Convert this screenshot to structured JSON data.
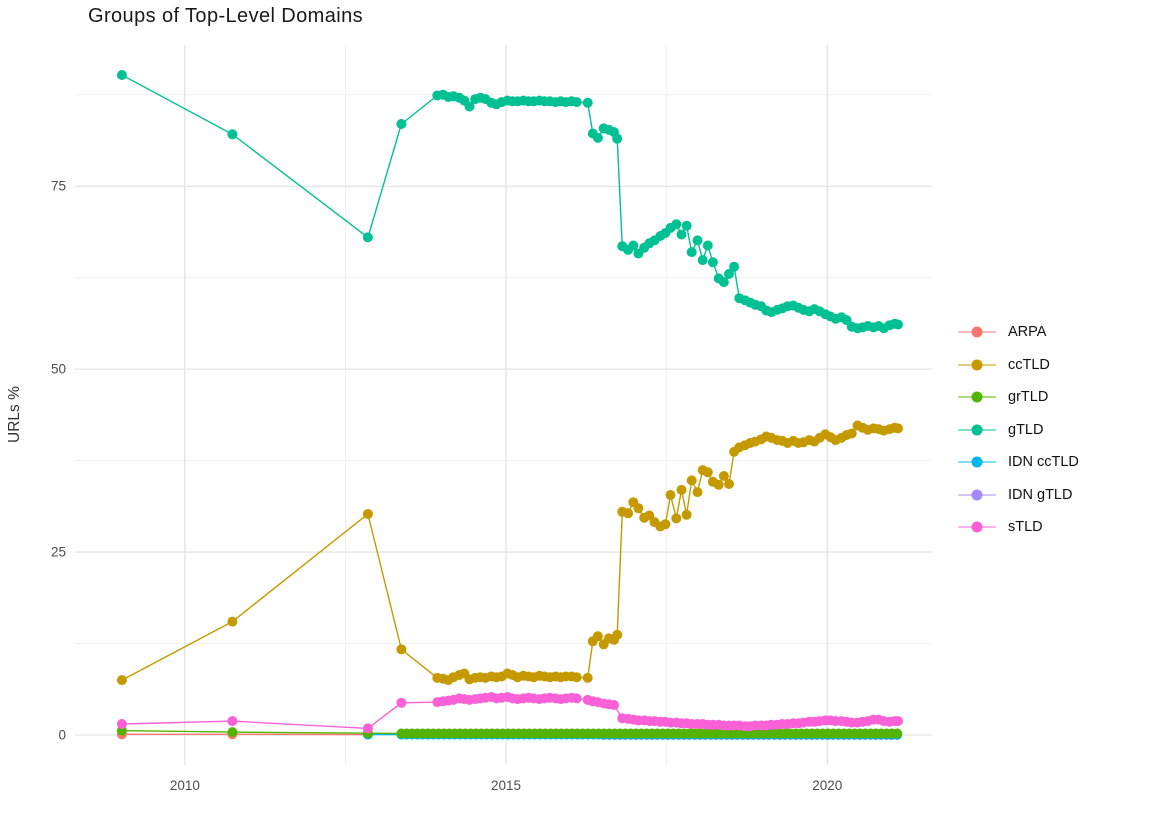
{
  "chart_data": {
    "type": "scatter",
    "title": "Groups of Top-Level Domains",
    "ylabel": "URLs %",
    "xlabel": "",
    "legend_position": "right",
    "grid": true,
    "x_domain": [
      2008.29,
      2021.63
    ],
    "y_domain": [
      -4.1,
      94.3
    ],
    "x_ticks": [
      2010,
      2015,
      2020
    ],
    "x_minor_gridlines": [
      2012.5,
      2017.5
    ],
    "y_ticks": [
      0,
      25,
      50,
      75
    ],
    "y_minor_gridlines": [
      12.5,
      37.5,
      62.5,
      87.5
    ],
    "colors": {
      "major_grid": "#e3e3e3",
      "minor_grid": "#efefef",
      "axis_text": "#4d4d4d",
      "title_text": "#1a1a1a",
      "background": "#ffffff"
    },
    "series": [
      {
        "name": "ARPA",
        "color": "#F8766D",
        "points": [
          [
            2009.02,
            0.1
          ],
          [
            2010.74,
            0.1
          ],
          [
            2012.85,
            0.05
          ]
        ]
      },
      {
        "name": "ccTLD",
        "color": "#C49A00",
        "points": [
          [
            2009.02,
            7.5
          ],
          [
            2010.74,
            15.5
          ],
          [
            2012.85,
            30.2
          ],
          [
            2013.37,
            11.7
          ],
          [
            2013.93,
            7.8
          ],
          [
            2014.02,
            7.7
          ],
          [
            2014.1,
            7.5
          ],
          [
            2014.18,
            7.9
          ],
          [
            2014.27,
            8.2
          ],
          [
            2014.35,
            8.4
          ],
          [
            2014.43,
            7.6
          ],
          [
            2014.52,
            7.8
          ],
          [
            2014.6,
            7.9
          ],
          [
            2014.68,
            7.8
          ],
          [
            2014.77,
            8.0
          ],
          [
            2014.85,
            7.9
          ],
          [
            2014.93,
            8.0
          ],
          [
            2015.02,
            8.4
          ],
          [
            2015.1,
            8.2
          ],
          [
            2015.18,
            7.9
          ],
          [
            2015.27,
            8.1
          ],
          [
            2015.35,
            8.0
          ],
          [
            2015.43,
            7.9
          ],
          [
            2015.52,
            8.1
          ],
          [
            2015.6,
            8.0
          ],
          [
            2015.68,
            7.9
          ],
          [
            2015.77,
            8.0
          ],
          [
            2015.85,
            7.9
          ],
          [
            2015.93,
            8.0
          ],
          [
            2016.02,
            8.0
          ],
          [
            2016.1,
            7.9
          ],
          [
            2016.27,
            7.8
          ],
          [
            2016.35,
            12.8
          ],
          [
            2016.43,
            13.5
          ],
          [
            2016.52,
            12.4
          ],
          [
            2016.6,
            13.2
          ],
          [
            2016.68,
            13.0
          ],
          [
            2016.73,
            13.7
          ],
          [
            2016.81,
            30.5
          ],
          [
            2016.9,
            30.3
          ],
          [
            2016.98,
            31.8
          ],
          [
            2017.06,
            31.0
          ],
          [
            2017.15,
            29.7
          ],
          [
            2017.23,
            30.0
          ],
          [
            2017.31,
            29.1
          ],
          [
            2017.4,
            28.5
          ],
          [
            2017.48,
            28.8
          ],
          [
            2017.56,
            32.8
          ],
          [
            2017.65,
            29.6
          ],
          [
            2017.73,
            33.5
          ],
          [
            2017.81,
            30.1
          ],
          [
            2017.89,
            34.8
          ],
          [
            2017.98,
            33.2
          ],
          [
            2018.06,
            36.2
          ],
          [
            2018.14,
            35.9
          ],
          [
            2018.22,
            34.6
          ],
          [
            2018.31,
            34.2
          ],
          [
            2018.39,
            35.4
          ],
          [
            2018.47,
            34.3
          ],
          [
            2018.55,
            38.7
          ],
          [
            2018.63,
            39.3
          ],
          [
            2018.72,
            39.6
          ],
          [
            2018.8,
            39.9
          ],
          [
            2018.88,
            40.1
          ],
          [
            2018.97,
            40.4
          ],
          [
            2019.05,
            40.8
          ],
          [
            2019.13,
            40.6
          ],
          [
            2019.22,
            40.3
          ],
          [
            2019.3,
            40.2
          ],
          [
            2019.38,
            39.9
          ],
          [
            2019.47,
            40.2
          ],
          [
            2019.55,
            39.9
          ],
          [
            2019.63,
            40.0
          ],
          [
            2019.72,
            40.3
          ],
          [
            2019.8,
            40.1
          ],
          [
            2019.88,
            40.6
          ],
          [
            2019.97,
            41.1
          ],
          [
            2020.05,
            40.7
          ],
          [
            2020.13,
            40.3
          ],
          [
            2020.22,
            40.6
          ],
          [
            2020.3,
            41.0
          ],
          [
            2020.38,
            41.2
          ],
          [
            2020.47,
            42.3
          ],
          [
            2020.55,
            42.0
          ],
          [
            2020.63,
            41.7
          ],
          [
            2020.72,
            41.9
          ],
          [
            2020.8,
            41.8
          ],
          [
            2020.88,
            41.6
          ],
          [
            2020.97,
            41.8
          ],
          [
            2021.05,
            42.0
          ],
          [
            2021.1,
            41.9
          ]
        ]
      },
      {
        "name": "grTLD",
        "color": "#53B400",
        "points": [
          [
            2009.02,
            0.6
          ],
          [
            2010.74,
            0.4
          ],
          [
            2012.85,
            0.25
          ]
        ],
        "fill": [
          {
            "from": 2013.37,
            "to": 2021.1,
            "step": 0.083,
            "value": 0.2
          }
        ]
      },
      {
        "name": "gTLD",
        "color": "#00C094",
        "points": [
          [
            2009.02,
            90.2
          ],
          [
            2010.74,
            82.1
          ],
          [
            2012.85,
            68.0
          ],
          [
            2013.37,
            83.5
          ],
          [
            2013.93,
            87.4
          ],
          [
            2014.02,
            87.5
          ],
          [
            2014.1,
            87.2
          ],
          [
            2014.18,
            87.3
          ],
          [
            2014.27,
            87.1
          ],
          [
            2014.35,
            86.7
          ],
          [
            2014.43,
            85.9
          ],
          [
            2014.52,
            86.9
          ],
          [
            2014.6,
            87.1
          ],
          [
            2014.68,
            86.9
          ],
          [
            2014.77,
            86.4
          ],
          [
            2014.85,
            86.2
          ],
          [
            2014.93,
            86.5
          ],
          [
            2015.02,
            86.7
          ],
          [
            2015.1,
            86.6
          ],
          [
            2015.18,
            86.6
          ],
          [
            2015.27,
            86.7
          ],
          [
            2015.35,
            86.6
          ],
          [
            2015.43,
            86.6
          ],
          [
            2015.52,
            86.7
          ],
          [
            2015.6,
            86.6
          ],
          [
            2015.68,
            86.6
          ],
          [
            2015.77,
            86.5
          ],
          [
            2015.85,
            86.6
          ],
          [
            2015.93,
            86.5
          ],
          [
            2016.02,
            86.6
          ],
          [
            2016.1,
            86.5
          ],
          [
            2016.27,
            86.4
          ],
          [
            2016.35,
            82.2
          ],
          [
            2016.43,
            81.6
          ],
          [
            2016.52,
            82.9
          ],
          [
            2016.6,
            82.7
          ],
          [
            2016.68,
            82.4
          ],
          [
            2016.73,
            81.5
          ],
          [
            2016.81,
            66.8
          ],
          [
            2016.9,
            66.3
          ],
          [
            2016.98,
            66.9
          ],
          [
            2017.06,
            65.8
          ],
          [
            2017.15,
            66.6
          ],
          [
            2017.23,
            67.2
          ],
          [
            2017.31,
            67.6
          ],
          [
            2017.4,
            68.2
          ],
          [
            2017.48,
            68.6
          ],
          [
            2017.56,
            69.3
          ],
          [
            2017.65,
            69.8
          ],
          [
            2017.73,
            68.4
          ],
          [
            2017.81,
            69.6
          ],
          [
            2017.89,
            66.0
          ],
          [
            2017.98,
            67.6
          ],
          [
            2018.06,
            64.9
          ],
          [
            2018.14,
            66.9
          ],
          [
            2018.22,
            64.6
          ],
          [
            2018.31,
            62.4
          ],
          [
            2018.39,
            61.9
          ],
          [
            2018.47,
            63.0
          ],
          [
            2018.55,
            64.0
          ],
          [
            2018.63,
            59.7
          ],
          [
            2018.72,
            59.4
          ],
          [
            2018.8,
            59.1
          ],
          [
            2018.88,
            58.8
          ],
          [
            2018.97,
            58.6
          ],
          [
            2019.05,
            58.0
          ],
          [
            2019.13,
            57.8
          ],
          [
            2019.22,
            58.1
          ],
          [
            2019.3,
            58.3
          ],
          [
            2019.38,
            58.6
          ],
          [
            2019.47,
            58.7
          ],
          [
            2019.55,
            58.4
          ],
          [
            2019.63,
            58.1
          ],
          [
            2019.72,
            57.9
          ],
          [
            2019.8,
            58.2
          ],
          [
            2019.88,
            57.9
          ],
          [
            2019.97,
            57.5
          ],
          [
            2020.05,
            57.2
          ],
          [
            2020.13,
            56.9
          ],
          [
            2020.22,
            57.1
          ],
          [
            2020.3,
            56.7
          ],
          [
            2020.38,
            55.8
          ],
          [
            2020.47,
            55.6
          ],
          [
            2020.55,
            55.7
          ],
          [
            2020.63,
            55.9
          ],
          [
            2020.72,
            55.7
          ],
          [
            2020.8,
            55.9
          ],
          [
            2020.88,
            55.6
          ],
          [
            2020.97,
            56.0
          ],
          [
            2021.05,
            56.2
          ],
          [
            2021.1,
            56.1
          ]
        ]
      },
      {
        "name": "IDN ccTLD",
        "color": "#00B6EB",
        "points": [
          [
            2012.85,
            0.05
          ]
        ],
        "fill": [
          {
            "from": 2013.37,
            "to": 2021.1,
            "step": 0.083,
            "value": 0.05
          }
        ]
      },
      {
        "name": "IDN gTLD",
        "color": "#A58AFF",
        "points": [],
        "fill": [
          {
            "from": 2016.52,
            "to": 2021.1,
            "step": 0.083,
            "value": 0.0
          }
        ]
      },
      {
        "name": "sTLD",
        "color": "#FB61D7",
        "points": [
          [
            2009.02,
            1.5
          ],
          [
            2010.74,
            1.9
          ],
          [
            2012.85,
            0.9
          ],
          [
            2013.37,
            4.4
          ],
          [
            2013.93,
            4.5
          ],
          [
            2014.02,
            4.6
          ],
          [
            2014.1,
            4.7
          ],
          [
            2014.18,
            4.8
          ],
          [
            2014.27,
            5.0
          ],
          [
            2014.35,
            4.9
          ],
          [
            2014.43,
            4.8
          ],
          [
            2014.52,
            4.9
          ],
          [
            2014.6,
            5.0
          ],
          [
            2014.68,
            5.1
          ],
          [
            2014.77,
            5.2
          ],
          [
            2014.85,
            5.0
          ],
          [
            2014.93,
            5.1
          ],
          [
            2015.02,
            5.2
          ],
          [
            2015.1,
            5.0
          ],
          [
            2015.18,
            4.9
          ],
          [
            2015.27,
            5.0
          ],
          [
            2015.35,
            5.1
          ],
          [
            2015.43,
            5.0
          ],
          [
            2015.52,
            4.9
          ],
          [
            2015.6,
            5.0
          ],
          [
            2015.68,
            5.1
          ],
          [
            2015.77,
            5.0
          ],
          [
            2015.85,
            4.9
          ],
          [
            2015.93,
            5.0
          ],
          [
            2016.02,
            5.1
          ],
          [
            2016.1,
            5.0
          ],
          [
            2016.27,
            4.8
          ],
          [
            2016.35,
            4.6
          ],
          [
            2016.43,
            4.5
          ],
          [
            2016.52,
            4.3
          ],
          [
            2016.6,
            4.2
          ],
          [
            2016.68,
            4.1
          ],
          [
            2016.81,
            2.3
          ],
          [
            2016.9,
            2.2
          ],
          [
            2016.98,
            2.1
          ],
          [
            2017.06,
            2.0
          ],
          [
            2017.15,
            2.0
          ],
          [
            2017.23,
            1.9
          ],
          [
            2017.31,
            1.9
          ],
          [
            2017.4,
            1.8
          ],
          [
            2017.48,
            1.8
          ],
          [
            2017.56,
            1.7
          ],
          [
            2017.65,
            1.7
          ],
          [
            2017.73,
            1.6
          ],
          [
            2017.81,
            1.6
          ],
          [
            2017.89,
            1.5
          ],
          [
            2017.98,
            1.5
          ],
          [
            2018.06,
            1.5
          ],
          [
            2018.14,
            1.4
          ],
          [
            2018.22,
            1.4
          ],
          [
            2018.31,
            1.4
          ],
          [
            2018.39,
            1.3
          ],
          [
            2018.47,
            1.3
          ],
          [
            2018.55,
            1.3
          ],
          [
            2018.63,
            1.3
          ],
          [
            2018.72,
            1.2
          ],
          [
            2018.8,
            1.2
          ],
          [
            2018.88,
            1.3
          ],
          [
            2018.97,
            1.3
          ],
          [
            2019.05,
            1.3
          ],
          [
            2019.13,
            1.4
          ],
          [
            2019.22,
            1.4
          ],
          [
            2019.3,
            1.5
          ],
          [
            2019.38,
            1.5
          ],
          [
            2019.47,
            1.6
          ],
          [
            2019.55,
            1.6
          ],
          [
            2019.63,
            1.7
          ],
          [
            2019.72,
            1.8
          ],
          [
            2019.8,
            1.8
          ],
          [
            2019.88,
            1.9
          ],
          [
            2019.97,
            2.0
          ],
          [
            2020.05,
            2.0
          ],
          [
            2020.13,
            1.9
          ],
          [
            2020.22,
            1.9
          ],
          [
            2020.3,
            1.8
          ],
          [
            2020.38,
            1.7
          ],
          [
            2020.47,
            1.7
          ],
          [
            2020.55,
            1.8
          ],
          [
            2020.63,
            1.9
          ],
          [
            2020.72,
            2.1
          ],
          [
            2020.8,
            2.1
          ],
          [
            2020.88,
            1.9
          ],
          [
            2020.97,
            1.8
          ],
          [
            2021.05,
            1.9
          ],
          [
            2021.1,
            1.9
          ]
        ]
      }
    ]
  }
}
